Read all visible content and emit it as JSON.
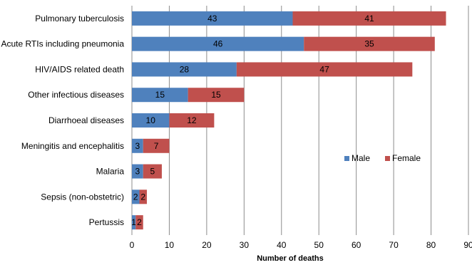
{
  "chart_data": {
    "type": "bar",
    "orientation": "horizontal",
    "stacked": true,
    "categories": [
      "Pulmonary tuberculosis",
      "Acute RTIs including pneumonia",
      "HIV/AIDS related death",
      "Other infectious diseases",
      "Diarrhoeal diseases",
      "Meningitis and encephalitis",
      "Malaria",
      "Sepsis (non-obstetric)",
      "Pertussis"
    ],
    "series": [
      {
        "name": "Male",
        "color": "#4F81BD",
        "values": [
          43,
          46,
          28,
          15,
          10,
          3,
          3,
          2,
          1
        ]
      },
      {
        "name": "Female",
        "color": "#C0504D",
        "values": [
          41,
          35,
          47,
          15,
          12,
          7,
          5,
          2,
          2
        ]
      }
    ],
    "xlabel": "Number of deaths",
    "ylabel": "",
    "xlim": [
      0,
      90
    ],
    "xticks": [
      "0",
      "10",
      "20",
      "30",
      "40",
      "50",
      "60",
      "70",
      "80",
      "90"
    ],
    "grid": "vertical",
    "legend_position": "right"
  }
}
